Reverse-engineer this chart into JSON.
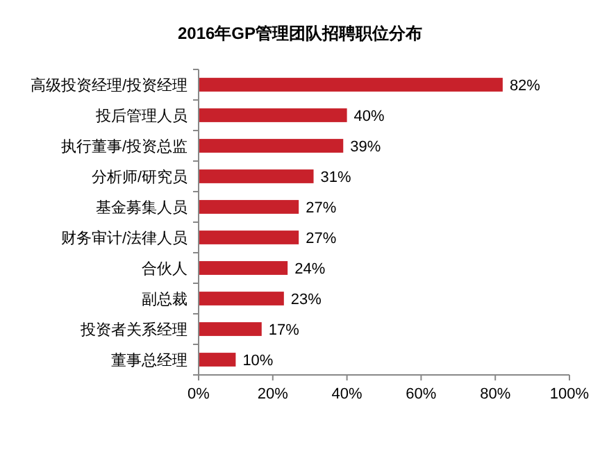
{
  "chart_data": {
    "type": "bar",
    "orientation": "horizontal",
    "title": "2016年GP管理团队招聘职位分布",
    "categories": [
      "高级投资经理/投资经理",
      "投后管理人员",
      "执行董事/投资总监",
      "分析师/研究员",
      "基金募集人员",
      "财务审计/法律人员",
      "合伙人",
      "副总裁",
      "投资者关系经理",
      "董事总经理"
    ],
    "values": [
      82,
      40,
      39,
      31,
      27,
      27,
      24,
      23,
      17,
      10
    ],
    "value_labels": [
      "82%",
      "40%",
      "39%",
      "31%",
      "27%",
      "27%",
      "24%",
      "23%",
      "17%",
      "10%"
    ],
    "color": "#c8212b",
    "xlim": [
      0,
      100
    ],
    "xticks": [
      {
        "value": 0,
        "label": "0%"
      },
      {
        "value": 20,
        "label": "20%"
      },
      {
        "value": 40,
        "label": "40%"
      },
      {
        "value": 60,
        "label": "60%"
      },
      {
        "value": 80,
        "label": "80%"
      },
      {
        "value": 100,
        "label": "100%"
      }
    ]
  }
}
